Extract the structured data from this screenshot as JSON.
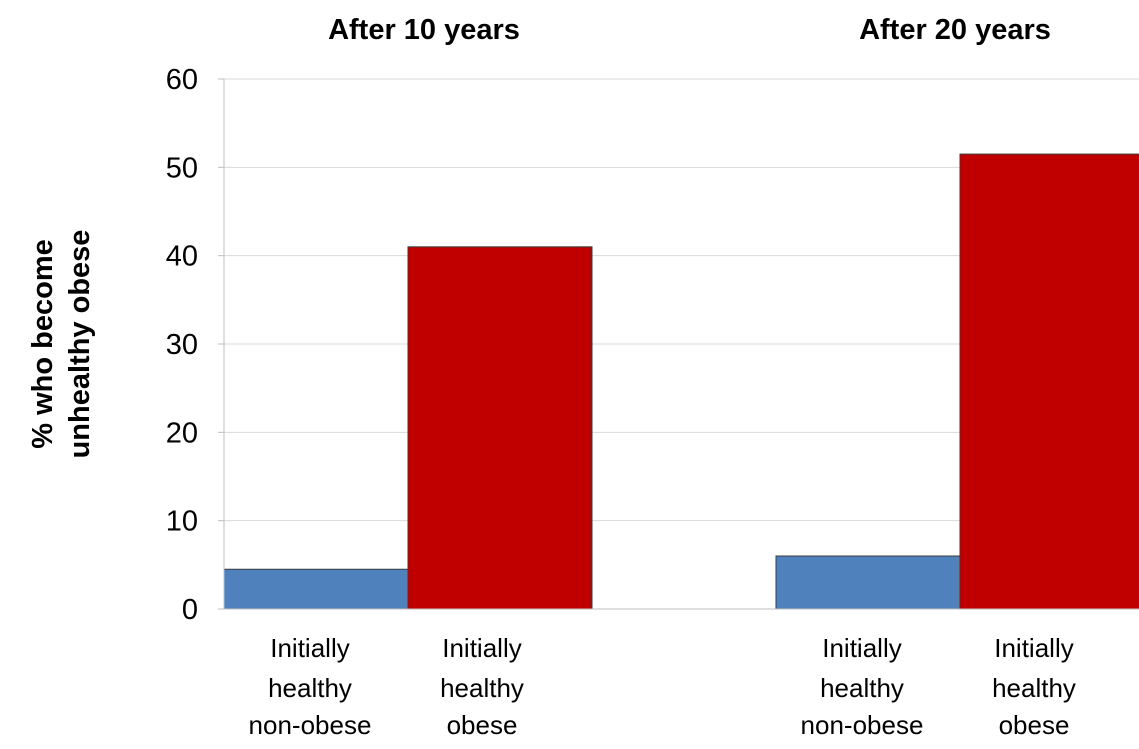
{
  "chart_data": {
    "type": "bar",
    "group_titles": [
      "After 10 years",
      "After 20 years"
    ],
    "categories": [
      [
        "Initially",
        "healthy",
        "non-obese"
      ],
      [
        "Initially",
        "healthy",
        "obese"
      ],
      [
        "Initially",
        "healthy",
        "non-obese"
      ],
      [
        "Initially",
        "healthy",
        "obese"
      ]
    ],
    "values": [
      4.5,
      41,
      6,
      51.5
    ],
    "bar_colors": [
      "#4f81bd",
      "#c00000",
      "#4f81bd",
      "#c00000"
    ],
    "ylabel": [
      "% who become",
      "unhealthy obese"
    ],
    "ylim": [
      0,
      60
    ],
    "yticks": [
      0,
      10,
      20,
      30,
      40,
      50,
      60
    ],
    "grid": true,
    "legend": "none"
  }
}
